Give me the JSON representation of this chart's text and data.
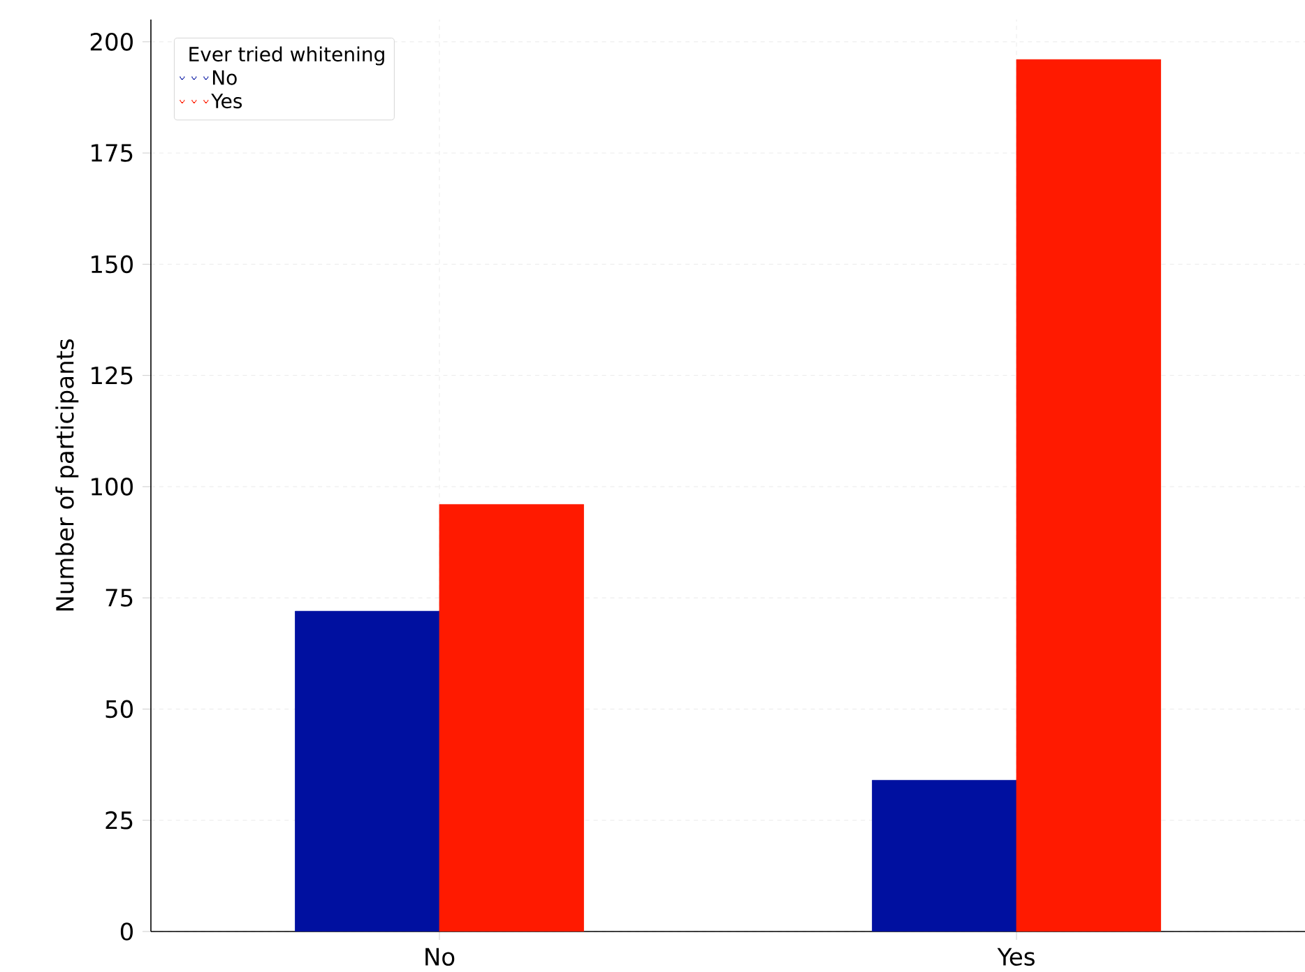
{
  "chart_data": {
    "type": "bar",
    "ylabel": "Number of participants",
    "legend_title": "Ever tried whitening",
    "categories": [
      "No",
      "Yes"
    ],
    "series": [
      {
        "name": "No",
        "color": "#0010a0",
        "values": [
          72,
          34
        ]
      },
      {
        "name": "Yes",
        "color": "#ff1a00",
        "values": [
          96,
          196
        ]
      }
    ],
    "ylim": [
      0,
      205
    ],
    "yticks": [
      0,
      25,
      50,
      75,
      100,
      125,
      150,
      175,
      200
    ],
    "grid": true,
    "legend": "top left"
  }
}
